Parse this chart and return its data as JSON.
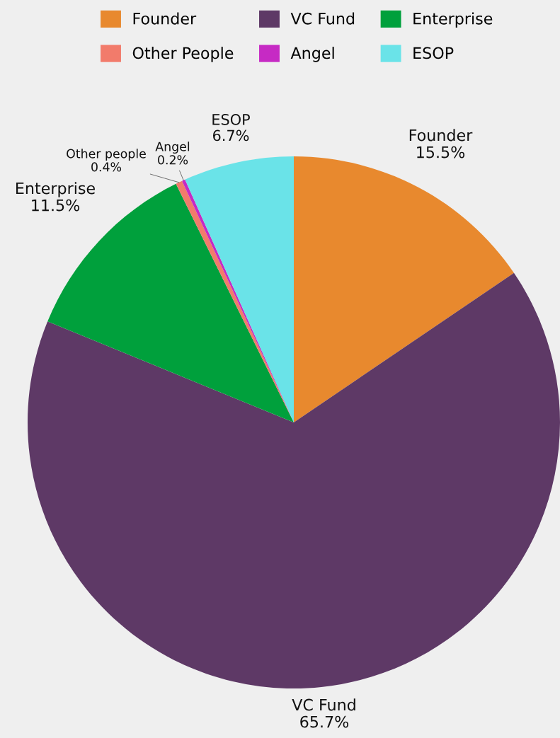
{
  "chart_data": {
    "type": "pie",
    "categories": [
      "Founder",
      "VC Fund",
      "Enterprise",
      "Other People",
      "Angel",
      "ESOP"
    ],
    "values": [
      15.5,
      65.7,
      11.5,
      0.4,
      0.2,
      6.7
    ],
    "colors": [
      "#e8892e",
      "#5e3966",
      "#00a03c",
      "#f27b6b",
      "#c62ac4",
      "#6ae3e8"
    ],
    "value_labels": [
      "Founder\n15.5%",
      "VC Fund\n65.7%",
      "Enterprise\n11.5%",
      "Other people\n0.4%",
      "Angel\n0.2%",
      "ESOP\n6.7%"
    ],
    "legend": "top"
  }
}
